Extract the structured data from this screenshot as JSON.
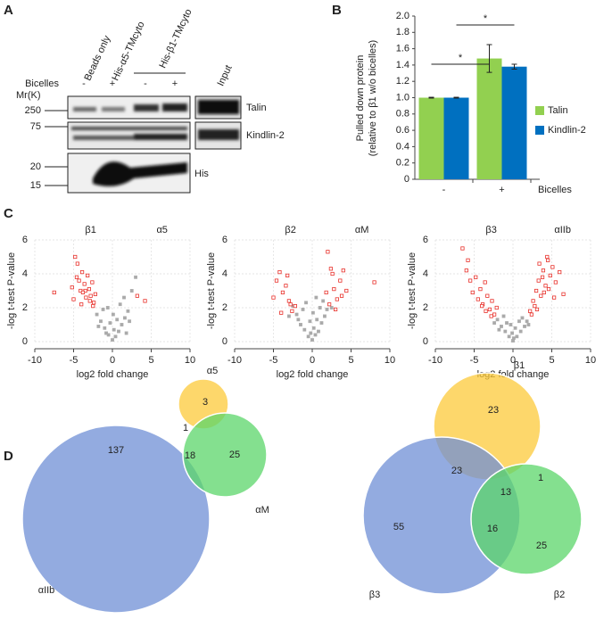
{
  "panel_labels": [
    "A",
    "B",
    "C",
    "D"
  ],
  "blot": {
    "lanes": [
      "Beads only",
      "His-α5-TMcyto"
    ],
    "lane_group": "His-β1-TMcyto",
    "input_lane": "Input",
    "bicelles_label": "Bicelles",
    "bicelles": [
      "-",
      "+",
      "-",
      "+"
    ],
    "marker_label": "Mr(K)",
    "markers": [
      250,
      75,
      20,
      15
    ],
    "bands": [
      "Talin",
      "Kindlin-2",
      "His"
    ]
  },
  "chart_data": [
    {
      "type": "bar",
      "y_label": [
        "Pulled down protein",
        "(relative to β1 w/o bicelles)"
      ],
      "x_label": "Bicelles",
      "categories": [
        "-",
        "+"
      ],
      "series": [
        {
          "name": "Talin",
          "color": "#92d050",
          "values": [
            1,
            1.48
          ],
          "errors": [
            0.005,
            0.17
          ]
        },
        {
          "name": "Kindlin-2",
          "color": "#0070c0",
          "values": [
            1,
            1.38
          ],
          "errors": [
            0.005,
            0.03
          ]
        }
      ],
      "ylim": [
        0,
        2
      ],
      "yticks": [
        0,
        0.2,
        0.4,
        0.6,
        0.8,
        {
          "value": 1,
          "label": "1.0"
        },
        1.2,
        1.4,
        1.6,
        1.8,
        {
          "value": 2,
          "label": "2.0"
        }
      ],
      "annotations": [
        "*",
        "*"
      ]
    },
    {
      "type": "scatter",
      "labels": [
        "β1",
        "α5"
      ],
      "x_label": "log2 fold change",
      "y_label": "-log t-test P-value",
      "xlim": [
        -10,
        10
      ],
      "xticks": [
        -10,
        -5,
        0,
        5,
        10
      ],
      "ylim": [
        0,
        6
      ],
      "yticks": [
        0,
        2,
        4,
        6
      ],
      "grid": true,
      "series": [
        {
          "color": "#e8302a",
          "x": [
            -7.5,
            -5.2,
            -4.8,
            -4.5,
            -4.3,
            -4.1,
            -3.9,
            -3.6,
            -3.4,
            -3.2,
            -3.0,
            -2.8,
            -2.6,
            -2.4,
            -2.2,
            -5.0,
            -4.0,
            -3.5,
            -2.9,
            -2.5,
            3.2,
            4.2,
            -4.6,
            -3.8
          ],
          "values": [
            2.9,
            3.2,
            5.0,
            4.6,
            3.6,
            3.0,
            4.1,
            3.4,
            2.6,
            3.9,
            3.1,
            2.7,
            3.5,
            2.3,
            2.8,
            2.5,
            2.2,
            3.0,
            2.4,
            2.1,
            2.7,
            2.4,
            3.8,
            2.9
          ]
        },
        {
          "color": "#aaaaaa",
          "x": [
            -1.5,
            -1.0,
            -0.5,
            0,
            0.4,
            0.8,
            1.2,
            1.6,
            2.0,
            -2.0,
            -1.2,
            -0.3,
            0.2,
            0.6,
            1.0,
            1.5,
            2.5,
            3.0,
            -0.8,
            0.1,
            -1.8,
            2.2,
            1.8,
            -0.6
          ],
          "values": [
            1.2,
            0.8,
            0.4,
            0.1,
            0.3,
            0.6,
            1.0,
            1.4,
            1.8,
            1.6,
            1.9,
            1.1,
            0.7,
            1.3,
            2.2,
            2.6,
            3.0,
            3.8,
            0.5,
            1.6,
            0.9,
            1.2,
            0.5,
            2.0
          ]
        }
      ]
    },
    {
      "type": "scatter",
      "labels": [
        "β2",
        "αM"
      ],
      "x_label": "log2 fold change",
      "y_label": "-log t-test P-value",
      "xlim": [
        -10,
        10
      ],
      "xticks": [
        -10,
        -5,
        0,
        5,
        10
      ],
      "ylim": [
        0,
        6
      ],
      "yticks": [
        0,
        2,
        4,
        6
      ],
      "grid": true,
      "series": [
        {
          "color": "#e8302a",
          "x": [
            -5.0,
            -4.6,
            -4.2,
            -3.8,
            -3.4,
            -3.0,
            -2.6,
            -2.2,
            -4.0,
            -3.2,
            2.0,
            2.4,
            2.8,
            3.2,
            3.6,
            4.0,
            4.4,
            2.2,
            3.0,
            3.8,
            8.0,
            2.6,
            1.8,
            -2.8
          ],
          "values": [
            2.6,
            3.6,
            4.1,
            2.9,
            3.3,
            2.4,
            1.8,
            2.1,
            1.7,
            3.9,
            5.3,
            4.3,
            3.1,
            2.5,
            3.6,
            4.2,
            3.0,
            2.2,
            1.9,
            2.7,
            3.5,
            4.0,
            2.9,
            2.2
          ]
        },
        {
          "color": "#aaaaaa",
          "x": [
            -1.5,
            -1.0,
            -0.5,
            0,
            0.4,
            0.8,
            1.2,
            1.6,
            -2.0,
            -1.2,
            -0.3,
            0.2,
            0.6,
            1.0,
            1.4,
            -2.5,
            -1.8,
            0.1,
            -0.8,
            1.9,
            -3.0,
            2.5,
            -0.2,
            0.5
          ],
          "values": [
            1.0,
            0.7,
            0.3,
            0.1,
            0.4,
            0.6,
            1.1,
            1.5,
            1.6,
            1.9,
            1.2,
            0.8,
            1.3,
            2.0,
            2.4,
            2.1,
            1.3,
            1.7,
            2.3,
            1.9,
            1.5,
            2.0,
            0.5,
            2.6
          ]
        }
      ]
    },
    {
      "type": "scatter",
      "labels": [
        "β3",
        "αIIb"
      ],
      "x_label": "log2 fold change",
      "y_label": "-log t-test P-value",
      "xlim": [
        -10,
        10
      ],
      "xticks": [
        -10,
        -5,
        0,
        5,
        10
      ],
      "ylim": [
        0,
        6
      ],
      "yticks": [
        0,
        2,
        4,
        6
      ],
      "grid": true,
      "series": [
        {
          "color": "#e8302a",
          "x": [
            -6.5,
            -6.0,
            -5.5,
            -5.2,
            -4.8,
            -4.5,
            -4.2,
            -3.9,
            -3.6,
            -3.3,
            -3.0,
            -2.7,
            -2.4,
            -2.1,
            -5.8,
            -4.0,
            -3.5,
            -2.8,
            2.2,
            2.6,
            3.0,
            3.3,
            3.6,
            3.9,
            4.2,
            4.5,
            4.8,
            5.1,
            5.5,
            6.0,
            2.4,
            2.8,
            3.4,
            4.0,
            4.6,
            5.3,
            3.1,
            3.8,
            4.4,
            6.5
          ],
          "values": [
            5.5,
            4.2,
            3.6,
            2.9,
            3.8,
            2.5,
            3.1,
            2.2,
            3.5,
            2.7,
            1.9,
            2.4,
            1.6,
            2.0,
            4.8,
            2.1,
            1.8,
            1.5,
            1.8,
            2.4,
            3.0,
            3.6,
            2.7,
            4.2,
            3.3,
            4.8,
            3.9,
            4.4,
            3.5,
            4.1,
            1.6,
            2.1,
            4.6,
            2.9,
            3.1,
            2.6,
            1.9,
            3.8,
            5.0,
            2.8
          ]
        },
        {
          "color": "#aaaaaa",
          "x": [
            -1.5,
            -1.0,
            -0.5,
            0,
            0.5,
            1.0,
            1.5,
            -2.0,
            -1.2,
            -0.3,
            0.3,
            1.2,
            1.8,
            -1.8,
            -0.8,
            0.8,
            -2.4,
            2.0,
            -0.1,
            0.1
          ],
          "values": [
            0.9,
            0.6,
            0.3,
            0.05,
            0.3,
            0.6,
            0.9,
            1.3,
            1.5,
            1.0,
            0.8,
            1.4,
            1.2,
            0.7,
            1.1,
            1.2,
            1.1,
            1.0,
            0.5,
            0.2
          ]
        }
      ]
    },
    {
      "type": "venn",
      "sets": [
        {
          "name": "αIIb",
          "color": "#6f8fd6"
        },
        {
          "name": "α5",
          "color": "#fcc93a"
        },
        {
          "name": "αM",
          "color": "#5bd66a"
        }
      ],
      "regions": [
        137,
        3,
        1,
        18,
        25
      ]
    },
    {
      "type": "venn",
      "sets": [
        {
          "name": "β1",
          "color": "#fcc93a"
        },
        {
          "name": "β3",
          "color": "#6f8fd6"
        },
        {
          "name": "β2",
          "color": "#5bd66a"
        }
      ],
      "regions": [
        23,
        23,
        13,
        1,
        55,
        16,
        25
      ]
    }
  ]
}
